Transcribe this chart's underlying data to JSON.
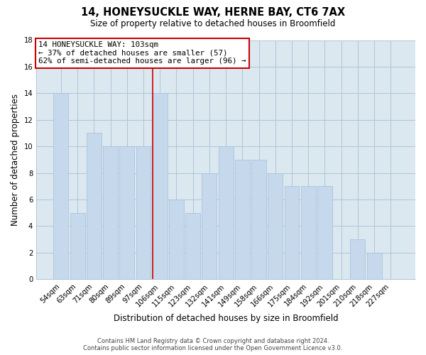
{
  "title": "14, HONEYSUCKLE WAY, HERNE BAY, CT6 7AX",
  "subtitle": "Size of property relative to detached houses in Broomfield",
  "xlabel": "Distribution of detached houses by size in Broomfield",
  "ylabel": "Number of detached properties",
  "footer_line1": "Contains HM Land Registry data © Crown copyright and database right 2024.",
  "footer_line2": "Contains public sector information licensed under the Open Government Licence v3.0.",
  "categories": [
    "54sqm",
    "63sqm",
    "71sqm",
    "80sqm",
    "89sqm",
    "97sqm",
    "106sqm",
    "115sqm",
    "123sqm",
    "132sqm",
    "141sqm",
    "149sqm",
    "158sqm",
    "166sqm",
    "175sqm",
    "184sqm",
    "192sqm",
    "201sqm",
    "210sqm",
    "218sqm",
    "227sqm"
  ],
  "values": [
    14,
    5,
    11,
    10,
    10,
    10,
    14,
    6,
    5,
    8,
    10,
    9,
    9,
    8,
    7,
    7,
    7,
    0,
    3,
    2,
    0
  ],
  "highlight_index": 6,
  "bar_color": "#c5d8ec",
  "highlight_bar_edge_color": "#cc0000",
  "bar_edge_color": "#aac4dc",
  "plot_bg_color": "#dce8f0",
  "background_color": "#ffffff",
  "grid_color": "#aec4d8",
  "ylim": [
    0,
    18
  ],
  "yticks": [
    0,
    2,
    4,
    6,
    8,
    10,
    12,
    14,
    16,
    18
  ],
  "annotation_line1": "14 HONEYSUCKLE WAY: 103sqm",
  "annotation_line2": "← 37% of detached houses are smaller (57)",
  "annotation_line3": "62% of semi-detached houses are larger (96) →",
  "annotation_box_color": "#ffffff",
  "annotation_box_edge": "#cc0000",
  "red_line_color": "#cc0000"
}
